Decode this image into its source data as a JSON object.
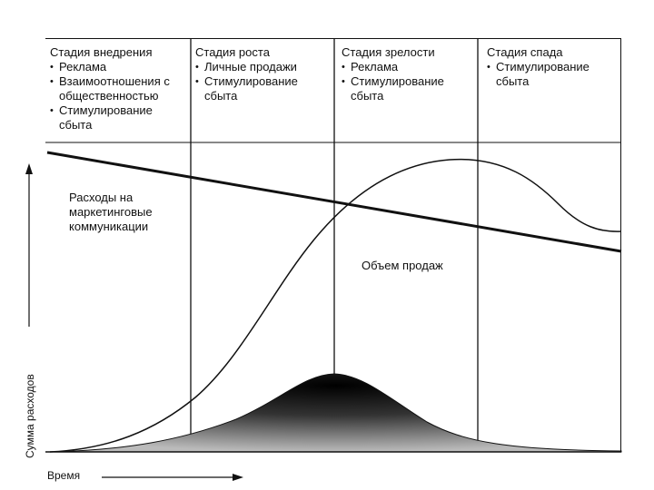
{
  "stages": [
    {
      "title": "Стадия внедрения",
      "items": [
        "Реклама",
        "Взаимоотношения с общественностью",
        "Стимулирование сбыта"
      ]
    },
    {
      "title": "Стадия роста",
      "items": [
        "Личные продажи",
        "Стимулирование сбыта"
      ]
    },
    {
      "title": "Стадия зрелости",
      "items": [
        "Реклама",
        "Стимулирование сбыта"
      ]
    },
    {
      "title": "Стадия спада",
      "items": [
        "Стимулирование сбыта"
      ]
    }
  ],
  "labels": {
    "costs": "Расходы на маркетинговые коммуникации",
    "sales": "Объем продаж"
  },
  "axes": {
    "y": "Сумма расходов",
    "x": "Время"
  }
}
